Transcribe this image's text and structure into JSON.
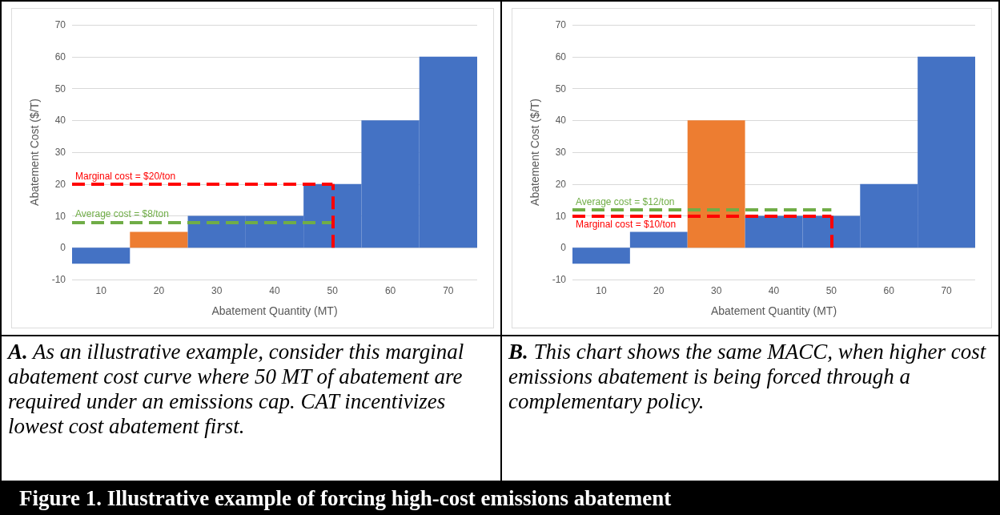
{
  "chart_data": [
    {
      "type": "bar",
      "xlabel": "Abatement Quantity (MT)",
      "ylabel": "Abatement Cost ($/T)",
      "categories": [
        "10",
        "20",
        "30",
        "40",
        "50",
        "60",
        "70"
      ],
      "values": [
        -5,
        5,
        10,
        10,
        20,
        40,
        60
      ],
      "colors": [
        "#4472c4",
        "#ed7d31",
        "#4472c4",
        "#4472c4",
        "#4472c4",
        "#4472c4",
        "#4472c4"
      ],
      "ylim": [
        -10,
        70
      ],
      "yticks": [
        -10,
        0,
        10,
        20,
        30,
        40,
        50,
        60,
        70
      ],
      "grid": "y",
      "ref_lines": [
        {
          "axis": "y",
          "value": 20,
          "label": "Marginal cost = $20/ton",
          "color": "#ff0000",
          "line_style": "dashed"
        },
        {
          "axis": "y",
          "value": 8,
          "label": "Average cost = $8/ton",
          "color": "#70ad47",
          "line_style": "dashed"
        },
        {
          "axis": "x",
          "value": "50",
          "color": "#ff0000",
          "line_style": "dashed"
        }
      ],
      "annotations": [
        "A.  As an illustrative example, consider this marginal abatement cost curve where 50 MT of abatement are required under an emissions cap.  CAT incentivizes lowest cost abatement first.",
        "Figure 1. Illustrative example of forcing high-cost emissions abatement"
      ]
    },
    {
      "type": "bar",
      "xlabel": "Abatement Quantity (MT)",
      "ylabel": "Abatement Cost ($/T)",
      "categories": [
        "10",
        "20",
        "30",
        "40",
        "50",
        "60",
        "70"
      ],
      "values": [
        -5,
        5,
        40,
        10,
        10,
        20,
        60
      ],
      "colors": [
        "#4472c4",
        "#4472c4",
        "#ed7d31",
        "#4472c4",
        "#4472c4",
        "#4472c4",
        "#4472c4"
      ],
      "ylim": [
        -10,
        70
      ],
      "yticks": [
        -10,
        0,
        10,
        20,
        30,
        40,
        50,
        60,
        70
      ],
      "grid": "y",
      "ref_lines": [
        {
          "axis": "y",
          "value": 12,
          "label": "Average cost = $12/ton",
          "color": "#70ad47",
          "line_style": "dashed"
        },
        {
          "axis": "y",
          "value": 10,
          "label": "Marginal cost = $10/ton",
          "color": "#ff0000",
          "line_style": "dashed"
        },
        {
          "axis": "x",
          "value": "50",
          "color": "#ff0000",
          "line_style": "dashed"
        }
      ],
      "annotations": [
        "B. This chart shows the same MACC, when higher cost emissions abatement is being forced through a complementary policy."
      ]
    }
  ]
}
